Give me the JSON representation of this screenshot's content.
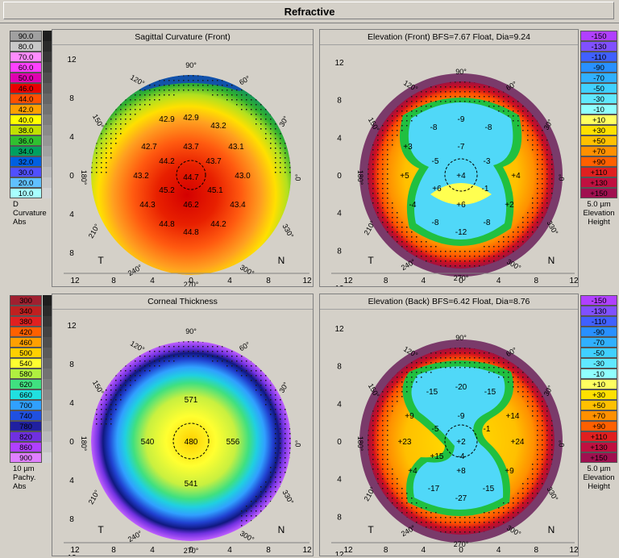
{
  "window": {
    "title": "Refractive"
  },
  "scales": {
    "curvature": {
      "entries": [
        {
          "label": "90.0",
          "color": "#a0a0a0"
        },
        {
          "label": "80.0",
          "color": "#c8c8c8"
        },
        {
          "label": "70.0",
          "color": "#ff8cff"
        },
        {
          "label": "60.0",
          "color": "#ff40ff"
        },
        {
          "label": "50.0",
          "color": "#e000b0"
        },
        {
          "label": "46.0",
          "color": "#e80000"
        },
        {
          "label": "44.0",
          "color": "#ff5000"
        },
        {
          "label": "42.0",
          "color": "#ffa000"
        },
        {
          "label": "40.0",
          "color": "#ffff00"
        },
        {
          "label": "38.0",
          "color": "#c0e000"
        },
        {
          "label": "36.0",
          "color": "#30c030"
        },
        {
          "label": "34.0",
          "color": "#00a060"
        },
        {
          "label": "32.0",
          "color": "#0060e0"
        },
        {
          "label": "30.0",
          "color": "#5050ff"
        },
        {
          "label": "20.0",
          "color": "#60c0ff"
        },
        {
          "label": "10.0",
          "color": "#a8ffff"
        }
      ],
      "unit": "D",
      "caption1": "Curvature",
      "caption2": "Abs"
    },
    "elevation_front": {
      "entries": [
        {
          "label": "-150",
          "color": "#b040ff"
        },
        {
          "label": "-130",
          "color": "#8050ff"
        },
        {
          "label": "-110",
          "color": "#4060ff"
        },
        {
          "label": "-90",
          "color": "#2890ff"
        },
        {
          "label": "-70",
          "color": "#30b0ff"
        },
        {
          "label": "-50",
          "color": "#40d0ff"
        },
        {
          "label": "-30",
          "color": "#60e8ff"
        },
        {
          "label": "-10",
          "color": "#90ffff"
        },
        {
          "label": "+10",
          "color": "#ffff60"
        },
        {
          "label": "+30",
          "color": "#ffe000"
        },
        {
          "label": "+50",
          "color": "#ffc000"
        },
        {
          "label": "+70",
          "color": "#ff9000"
        },
        {
          "label": "+90",
          "color": "#ff6000"
        },
        {
          "label": "+110",
          "color": "#e02020"
        },
        {
          "label": "+130",
          "color": "#c01040"
        },
        {
          "label": "+150",
          "color": "#a01050"
        }
      ],
      "unit": "5.0 µm",
      "caption1": "Elevation",
      "caption2": "Height"
    },
    "pachy": {
      "entries": [
        {
          "label": "300",
          "color": "#a02030"
        },
        {
          "label": "340",
          "color": "#c02020"
        },
        {
          "label": "380",
          "color": "#e02020"
        },
        {
          "label": "420",
          "color": "#ff6000"
        },
        {
          "label": "460",
          "color": "#ffa000"
        },
        {
          "label": "500",
          "color": "#ffd000"
        },
        {
          "label": "540",
          "color": "#ffff30"
        },
        {
          "label": "580",
          "color": "#b0f040"
        },
        {
          "label": "620",
          "color": "#40e080"
        },
        {
          "label": "660",
          "color": "#20e0e0"
        },
        {
          "label": "700",
          "color": "#30a0ff"
        },
        {
          "label": "740",
          "color": "#2050e0"
        },
        {
          "label": "780",
          "color": "#2020a0"
        },
        {
          "label": "820",
          "color": "#7030e0"
        },
        {
          "label": "860",
          "color": "#b040ff"
        },
        {
          "label": "900",
          "color": "#e080ff"
        }
      ],
      "unit": "10 µm",
      "caption1": "Pachy.",
      "caption2": "Abs"
    },
    "elevation_back": {
      "entries": [
        {
          "label": "-150",
          "color": "#b040ff"
        },
        {
          "label": "-130",
          "color": "#8050ff"
        },
        {
          "label": "-110",
          "color": "#4060ff"
        },
        {
          "label": "-90",
          "color": "#2890ff"
        },
        {
          "label": "-70",
          "color": "#30b0ff"
        },
        {
          "label": "-50",
          "color": "#40d0ff"
        },
        {
          "label": "-30",
          "color": "#60e8ff"
        },
        {
          "label": "-10",
          "color": "#90ffff"
        },
        {
          "label": "+10",
          "color": "#ffff60"
        },
        {
          "label": "+30",
          "color": "#ffe000"
        },
        {
          "label": "+50",
          "color": "#ffc000"
        },
        {
          "label": "+70",
          "color": "#ff9000"
        },
        {
          "label": "+90",
          "color": "#ff6000"
        },
        {
          "label": "+110",
          "color": "#e02020"
        },
        {
          "label": "+130",
          "color": "#c01040"
        },
        {
          "label": "+150",
          "color": "#a01050"
        }
      ],
      "unit": "5.0 µm",
      "caption1": "Elevation",
      "caption2": "Height"
    }
  },
  "axis": {
    "ticks": [
      "12",
      "8",
      "4",
      "0",
      "4",
      "8",
      "12"
    ],
    "left_label": "T",
    "right_label": "N",
    "angles": [
      "90°",
      "60°",
      "30°",
      "0°",
      "330°",
      "300°",
      "270°",
      "240°",
      "210°",
      "180°",
      "150°",
      "120°"
    ]
  },
  "maps": [
    {
      "id": "sagittal",
      "title": "Sagittal Curvature (Front)",
      "values": [
        "42.9",
        "42.9",
        "43.2",
        "42.7",
        "43.7",
        "43.1",
        "44.2",
        "43.7",
        "43.2",
        "44.7",
        "43.0",
        "45.2",
        "45.1",
        "44.3",
        "46.2",
        "43.4",
        "44.8",
        "44.2",
        "44.8"
      ]
    },
    {
      "id": "elev_front",
      "title": "Elevation (Front)  BFS=7.67 Float, Dia=9.24",
      "values": [
        "-8",
        "-9",
        "-8",
        "+3",
        "-7",
        "-5",
        "-3",
        "+5",
        "+4",
        "+4",
        "+6",
        "-1",
        "-4",
        "+6",
        "+2",
        "-8",
        "-12",
        "-8"
      ]
    },
    {
      "id": "thickness",
      "title": "Corneal Thickness",
      "values": [
        "571",
        "540",
        "480",
        "556",
        "541"
      ]
    },
    {
      "id": "elev_back",
      "title": "Elevation (Back)  BFS=6.42 Float, Dia=8.76",
      "values": [
        "-15",
        "-20",
        "-15",
        "+9",
        "-9",
        "+14",
        "-5",
        "-1",
        "+23",
        "+2",
        "+24",
        "+15",
        "-4",
        "+4",
        "+8",
        "+9",
        "-17",
        "-27",
        "-15"
      ]
    }
  ],
  "colors": {
    "bg": "#d4d0c8",
    "outer_ring": "#7a3a6a",
    "dots": "#1a1a1a"
  }
}
